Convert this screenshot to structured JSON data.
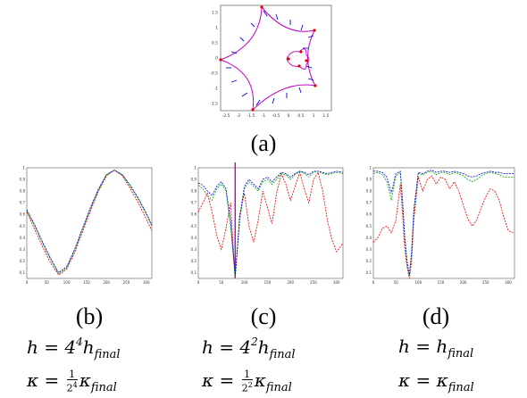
{
  "panel_a": {
    "caption": "(a)",
    "x_ticks": [
      "-2.5",
      "-2",
      "-1.5",
      "-1",
      "-0.5",
      "0",
      "0.5",
      "1",
      "1.5"
    ],
    "y_ticks": [
      "1.5",
      "1",
      "0.5",
      "0",
      "-0.5",
      "-1",
      "-1.5"
    ]
  },
  "panel_b": {
    "caption": "(b)",
    "eq1": {
      "lhs": "h = 4",
      "exp": "4",
      "rhs": "h",
      "sub": "final"
    },
    "eq2": {
      "lhs": "κ =",
      "num": "1",
      "den": "2",
      "den_exp": "4",
      "rhs": "κ",
      "sub": "final"
    }
  },
  "panel_c": {
    "caption": "(c)",
    "eq1": {
      "lhs": "h = 4",
      "exp": "2",
      "rhs": "h",
      "sub": "final"
    },
    "eq2": {
      "lhs": "κ =",
      "num": "1",
      "den": "2",
      "den_exp": "2",
      "rhs": "κ",
      "sub": "final"
    }
  },
  "panel_d": {
    "caption": "(d)",
    "eq1": {
      "lhs": "h = h",
      "sub": "final"
    },
    "eq2": {
      "lhs": "κ = κ",
      "sub": "final"
    }
  },
  "colors": {
    "red": "#e00000",
    "green": "#00b000",
    "blue": "#0000e0",
    "magenta": "#c000c0"
  },
  "chart_data": [
    {
      "type": "line",
      "id": "b",
      "y_ticks": [
        "1",
        "0.9",
        "0.8",
        "0.7",
        "0.6",
        "0.5",
        "0.4",
        "0.3",
        "0.2",
        "0.1"
      ],
      "x_ticks": [
        "0",
        "50",
        "100",
        "150",
        "200",
        "250",
        "300"
      ],
      "xlim": [
        0,
        314
      ],
      "ylim": [
        0.05,
        1.0
      ],
      "series": [
        {
          "color": "red",
          "x": [
            0,
            20,
            40,
            60,
            80,
            100,
            120,
            140,
            160,
            180,
            200,
            220,
            240,
            260,
            280,
            300,
            314
          ],
          "y": [
            0.62,
            0.47,
            0.32,
            0.18,
            0.08,
            0.13,
            0.27,
            0.45,
            0.63,
            0.8,
            0.93,
            0.98,
            0.93,
            0.82,
            0.7,
            0.56,
            0.46
          ]
        },
        {
          "color": "green",
          "x": [
            0,
            20,
            40,
            60,
            80,
            100,
            120,
            140,
            160,
            180,
            200,
            220,
            240,
            260,
            280,
            300,
            314
          ],
          "y": [
            0.63,
            0.5,
            0.35,
            0.21,
            0.09,
            0.14,
            0.29,
            0.47,
            0.65,
            0.81,
            0.94,
            0.98,
            0.94,
            0.84,
            0.73,
            0.6,
            0.5
          ]
        },
        {
          "color": "blue",
          "x": [
            0,
            20,
            40,
            60,
            80,
            100,
            120,
            140,
            160,
            180,
            200,
            220,
            240,
            260,
            280,
            300,
            314
          ],
          "y": [
            0.64,
            0.51,
            0.36,
            0.22,
            0.1,
            0.15,
            0.3,
            0.48,
            0.66,
            0.82,
            0.94,
            0.98,
            0.94,
            0.85,
            0.74,
            0.61,
            0.51
          ]
        }
      ]
    },
    {
      "type": "line",
      "id": "c",
      "y_ticks": [
        "1",
        "0.9",
        "0.8",
        "0.7",
        "0.6",
        "0.5",
        "0.4",
        "0.3",
        "0.2",
        "0.1"
      ],
      "x_ticks": [
        "0",
        "50",
        "100",
        "150",
        "200",
        "250",
        "300"
      ],
      "xlim": [
        0,
        314
      ],
      "ylim": [
        0.05,
        1.0
      ],
      "marker_x": 80,
      "series": [
        {
          "color": "red",
          "x": [
            0,
            10,
            20,
            30,
            40,
            50,
            60,
            70,
            80,
            90,
            100,
            110,
            120,
            130,
            140,
            150,
            160,
            170,
            180,
            190,
            200,
            210,
            220,
            230,
            240,
            250,
            260,
            270,
            280,
            290,
            300,
            314
          ],
          "y": [
            0.62,
            0.7,
            0.78,
            0.62,
            0.42,
            0.3,
            0.48,
            0.7,
            0.05,
            0.6,
            0.78,
            0.5,
            0.36,
            0.55,
            0.8,
            0.66,
            0.52,
            0.78,
            0.95,
            0.86,
            0.72,
            0.84,
            0.96,
            0.82,
            0.7,
            0.9,
            0.96,
            0.8,
            0.55,
            0.38,
            0.28,
            0.35
          ]
        },
        {
          "color": "green",
          "x": [
            0,
            10,
            20,
            30,
            40,
            50,
            60,
            70,
            80,
            90,
            100,
            110,
            120,
            130,
            140,
            150,
            160,
            170,
            180,
            190,
            200,
            210,
            220,
            230,
            240,
            250,
            260,
            270,
            280,
            290,
            300,
            314
          ],
          "y": [
            0.85,
            0.82,
            0.76,
            0.72,
            0.82,
            0.86,
            0.8,
            0.5,
            0.05,
            0.55,
            0.82,
            0.88,
            0.84,
            0.8,
            0.88,
            0.9,
            0.86,
            0.9,
            0.95,
            0.94,
            0.9,
            0.94,
            0.97,
            0.95,
            0.92,
            0.96,
            0.97,
            0.95,
            0.94,
            0.95,
            0.96,
            0.95
          ]
        },
        {
          "color": "blue",
          "x": [
            0,
            10,
            20,
            30,
            40,
            50,
            60,
            70,
            80,
            90,
            100,
            110,
            120,
            130,
            140,
            150,
            160,
            170,
            180,
            190,
            200,
            210,
            220,
            230,
            240,
            250,
            260,
            270,
            280,
            290,
            300,
            314
          ],
          "y": [
            0.87,
            0.85,
            0.8,
            0.76,
            0.84,
            0.88,
            0.82,
            0.55,
            0.07,
            0.58,
            0.84,
            0.9,
            0.86,
            0.82,
            0.9,
            0.92,
            0.88,
            0.92,
            0.96,
            0.95,
            0.92,
            0.95,
            0.97,
            0.96,
            0.94,
            0.97,
            0.97,
            0.96,
            0.95,
            0.96,
            0.97,
            0.96
          ]
        }
      ]
    },
    {
      "type": "line",
      "id": "d",
      "y_ticks": [
        "1",
        "0.9",
        "0.8",
        "0.7",
        "0.6",
        "0.5",
        "0.4",
        "0.3",
        "0.2",
        "0.1"
      ],
      "x_ticks": [
        "0",
        "50",
        "100",
        "150",
        "200",
        "250",
        "300"
      ],
      "xlim": [
        0,
        314
      ],
      "ylim": [
        0.05,
        1.0
      ],
      "series": [
        {
          "color": "red",
          "x": [
            0,
            10,
            20,
            30,
            40,
            50,
            60,
            65,
            70,
            75,
            80,
            85,
            90,
            100,
            110,
            120,
            130,
            140,
            150,
            160,
            170,
            180,
            190,
            200,
            210,
            220,
            230,
            240,
            250,
            260,
            270,
            280,
            290,
            300,
            314
          ],
          "y": [
            0.36,
            0.4,
            0.48,
            0.5,
            0.44,
            0.55,
            0.86,
            0.6,
            0.3,
            0.15,
            0.05,
            0.2,
            0.55,
            0.92,
            0.8,
            0.9,
            0.93,
            0.86,
            0.92,
            0.9,
            0.82,
            0.88,
            0.8,
            0.68,
            0.56,
            0.5,
            0.55,
            0.66,
            0.75,
            0.82,
            0.8,
            0.72,
            0.58,
            0.46,
            0.44
          ]
        },
        {
          "color": "green",
          "x": [
            0,
            10,
            20,
            30,
            40,
            50,
            60,
            65,
            70,
            75,
            80,
            85,
            90,
            100,
            110,
            120,
            130,
            140,
            150,
            160,
            170,
            180,
            190,
            200,
            210,
            220,
            230,
            240,
            250,
            260,
            270,
            280,
            290,
            300,
            314
          ],
          "y": [
            0.95,
            0.96,
            0.94,
            0.88,
            0.72,
            0.93,
            0.96,
            0.7,
            0.38,
            0.18,
            0.07,
            0.26,
            0.62,
            0.95,
            0.94,
            0.96,
            0.97,
            0.94,
            0.96,
            0.96,
            0.94,
            0.96,
            0.95,
            0.93,
            0.9,
            0.88,
            0.9,
            0.93,
            0.95,
            0.96,
            0.95,
            0.94,
            0.92,
            0.92,
            0.92
          ]
        },
        {
          "color": "blue",
          "x": [
            0,
            10,
            20,
            30,
            40,
            50,
            60,
            65,
            70,
            75,
            80,
            85,
            90,
            100,
            110,
            120,
            130,
            140,
            150,
            160,
            170,
            180,
            190,
            200,
            210,
            220,
            230,
            240,
            250,
            260,
            270,
            280,
            290,
            300,
            314
          ],
          "y": [
            0.97,
            0.97,
            0.96,
            0.92,
            0.78,
            0.95,
            0.97,
            0.72,
            0.4,
            0.2,
            0.08,
            0.28,
            0.64,
            0.96,
            0.95,
            0.97,
            0.98,
            0.96,
            0.97,
            0.97,
            0.96,
            0.97,
            0.96,
            0.95,
            0.93,
            0.92,
            0.93,
            0.95,
            0.96,
            0.97,
            0.96,
            0.96,
            0.95,
            0.95,
            0.95
          ]
        }
      ]
    }
  ]
}
